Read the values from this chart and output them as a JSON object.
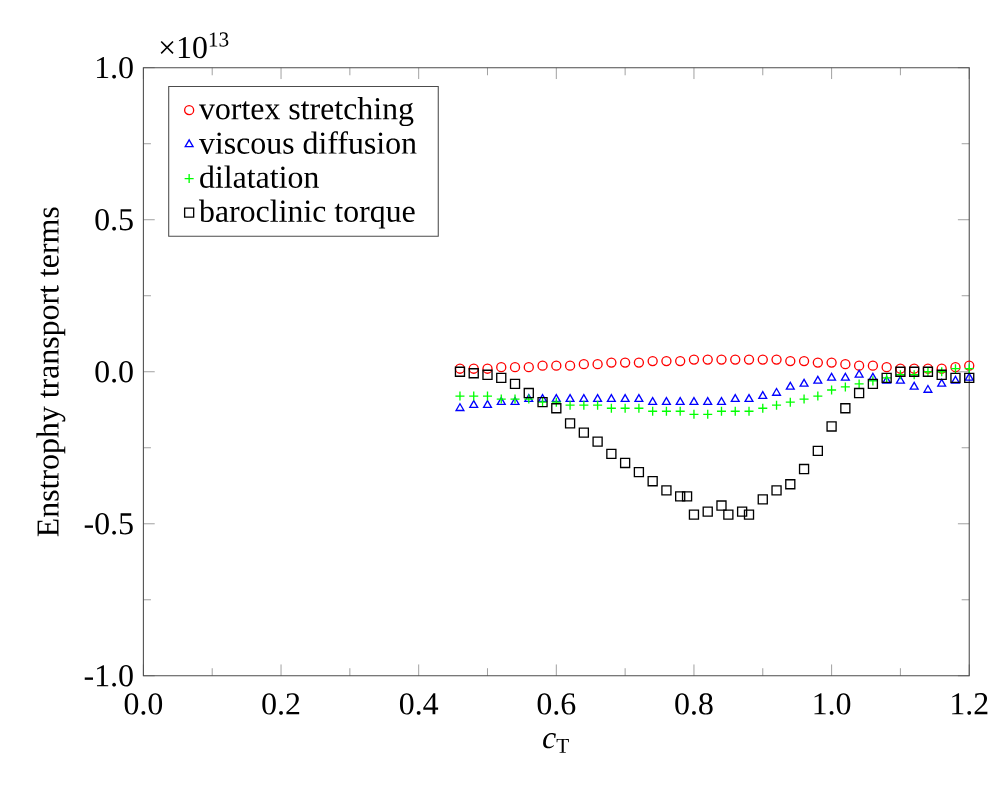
{
  "chart_data": {
    "type": "scatter",
    "xlabel": "*c*$_{T}$",
    "ylabel": "Enstrophy transport terms",
    "annotations": [
      "×10$^{13}$"
    ],
    "xlim": [
      0,
      1.2
    ],
    "ylim": [
      -1,
      1
    ],
    "xticks": [
      {
        "value": 0,
        "label": "0.0"
      },
      {
        "value": 0.2,
        "label": "0.2"
      },
      {
        "value": 0.4,
        "label": "0.4"
      },
      {
        "value": 0.6,
        "label": "0.6"
      },
      {
        "value": 0.8,
        "label": "0.8"
      },
      {
        "value": 1.0,
        "label": "1.0"
      },
      {
        "value": 1.2,
        "label": "1.2"
      }
    ],
    "yticks": [
      {
        "value": -1,
        "label": "-1.0"
      },
      {
        "value": -0.5,
        "label": "-0.5"
      },
      {
        "value": 0,
        "label": "0.0"
      },
      {
        "value": 0.5,
        "label": "0.5"
      },
      {
        "value": 1,
        "label": "1.0"
      }
    ],
    "grid": false,
    "legend": "top left",
    "series": [
      {
        "name": "vortex stretching",
        "color": "#ff0000",
        "marker": "circle",
        "x": [
          0.46,
          0.48,
          0.5,
          0.52,
          0.54,
          0.56,
          0.58,
          0.6,
          0.62,
          0.64,
          0.66,
          0.68,
          0.7,
          0.72,
          0.74,
          0.76,
          0.78,
          0.8,
          0.82,
          0.84,
          0.86,
          0.88,
          0.9,
          0.92,
          0.94,
          0.96,
          0.98,
          1.0,
          1.02,
          1.04,
          1.06,
          1.08,
          1.1,
          1.12,
          1.14,
          1.16,
          1.18,
          1.2
        ],
        "values": [
          0.01,
          0.01,
          0.01,
          0.015,
          0.015,
          0.015,
          0.02,
          0.02,
          0.02,
          0.025,
          0.025,
          0.03,
          0.03,
          0.03,
          0.035,
          0.035,
          0.035,
          0.04,
          0.04,
          0.04,
          0.04,
          0.04,
          0.04,
          0.04,
          0.035,
          0.035,
          0.03,
          0.03,
          0.025,
          0.02,
          0.02,
          0.015,
          0.01,
          0.01,
          0.01,
          0.01,
          0.015,
          0.02
        ]
      },
      {
        "name": "viscous diffusion",
        "color": "#0000ff",
        "marker": "triangle",
        "x": [
          0.46,
          0.48,
          0.5,
          0.52,
          0.54,
          0.56,
          0.58,
          0.6,
          0.62,
          0.64,
          0.66,
          0.68,
          0.7,
          0.72,
          0.74,
          0.76,
          0.78,
          0.8,
          0.82,
          0.84,
          0.86,
          0.88,
          0.9,
          0.92,
          0.94,
          0.96,
          0.98,
          1.0,
          1.02,
          1.04,
          1.06,
          1.08,
          1.1,
          1.12,
          1.14,
          1.16,
          1.18,
          1.2
        ],
        "values": [
          -0.12,
          -0.11,
          -0.11,
          -0.1,
          -0.1,
          -0.09,
          -0.09,
          -0.09,
          -0.09,
          -0.09,
          -0.09,
          -0.09,
          -0.09,
          -0.09,
          -0.1,
          -0.1,
          -0.1,
          -0.1,
          -0.1,
          -0.1,
          -0.09,
          -0.09,
          -0.08,
          -0.07,
          -0.05,
          -0.04,
          -0.03,
          -0.02,
          -0.02,
          -0.01,
          -0.02,
          -0.03,
          -0.03,
          -0.05,
          -0.06,
          -0.04,
          -0.03,
          -0.02
        ]
      },
      {
        "name": "dilatation",
        "color": "#00ff00",
        "marker": "cross",
        "x": [
          0.46,
          0.48,
          0.5,
          0.52,
          0.54,
          0.56,
          0.58,
          0.6,
          0.62,
          0.64,
          0.66,
          0.68,
          0.7,
          0.72,
          0.74,
          0.76,
          0.78,
          0.8,
          0.82,
          0.84,
          0.86,
          0.88,
          0.9,
          0.92,
          0.94,
          0.96,
          0.98,
          1.0,
          1.02,
          1.04,
          1.06,
          1.08,
          1.1,
          1.12,
          1.14,
          1.16,
          1.18,
          1.2
        ],
        "values": [
          -0.08,
          -0.08,
          -0.08,
          -0.09,
          -0.09,
          -0.09,
          -0.1,
          -0.1,
          -0.11,
          -0.11,
          -0.11,
          -0.12,
          -0.12,
          -0.12,
          -0.13,
          -0.13,
          -0.13,
          -0.14,
          -0.14,
          -0.13,
          -0.13,
          -0.13,
          -0.12,
          -0.11,
          -0.1,
          -0.09,
          -0.08,
          -0.06,
          -0.05,
          -0.04,
          -0.03,
          -0.02,
          -0.01,
          -0.01,
          0.0,
          0.0,
          0.01,
          0.01
        ]
      },
      {
        "name": "baroclinic torque",
        "color": "#000000",
        "marker": "square",
        "x": [
          0.46,
          0.48,
          0.5,
          0.52,
          0.54,
          0.56,
          0.58,
          0.6,
          0.62,
          0.64,
          0.66,
          0.68,
          0.7,
          0.72,
          0.74,
          0.76,
          0.78,
          0.79,
          0.8,
          0.82,
          0.84,
          0.85,
          0.87,
          0.88,
          0.9,
          0.92,
          0.94,
          0.96,
          0.98,
          1.0,
          1.02,
          1.04,
          1.06,
          1.08,
          1.1,
          1.12,
          1.14,
          1.16,
          1.18,
          1.2
        ],
        "values": [
          0.0,
          -0.005,
          -0.01,
          -0.02,
          -0.04,
          -0.07,
          -0.1,
          -0.12,
          -0.17,
          -0.2,
          -0.23,
          -0.27,
          -0.3,
          -0.33,
          -0.36,
          -0.39,
          -0.41,
          -0.41,
          -0.47,
          -0.46,
          -0.44,
          -0.47,
          -0.46,
          -0.47,
          -0.42,
          -0.39,
          -0.37,
          -0.32,
          -0.26,
          -0.18,
          -0.12,
          -0.07,
          -0.04,
          -0.02,
          0.0,
          0.0,
          0.0,
          -0.01,
          -0.02,
          -0.02
        ]
      }
    ]
  }
}
